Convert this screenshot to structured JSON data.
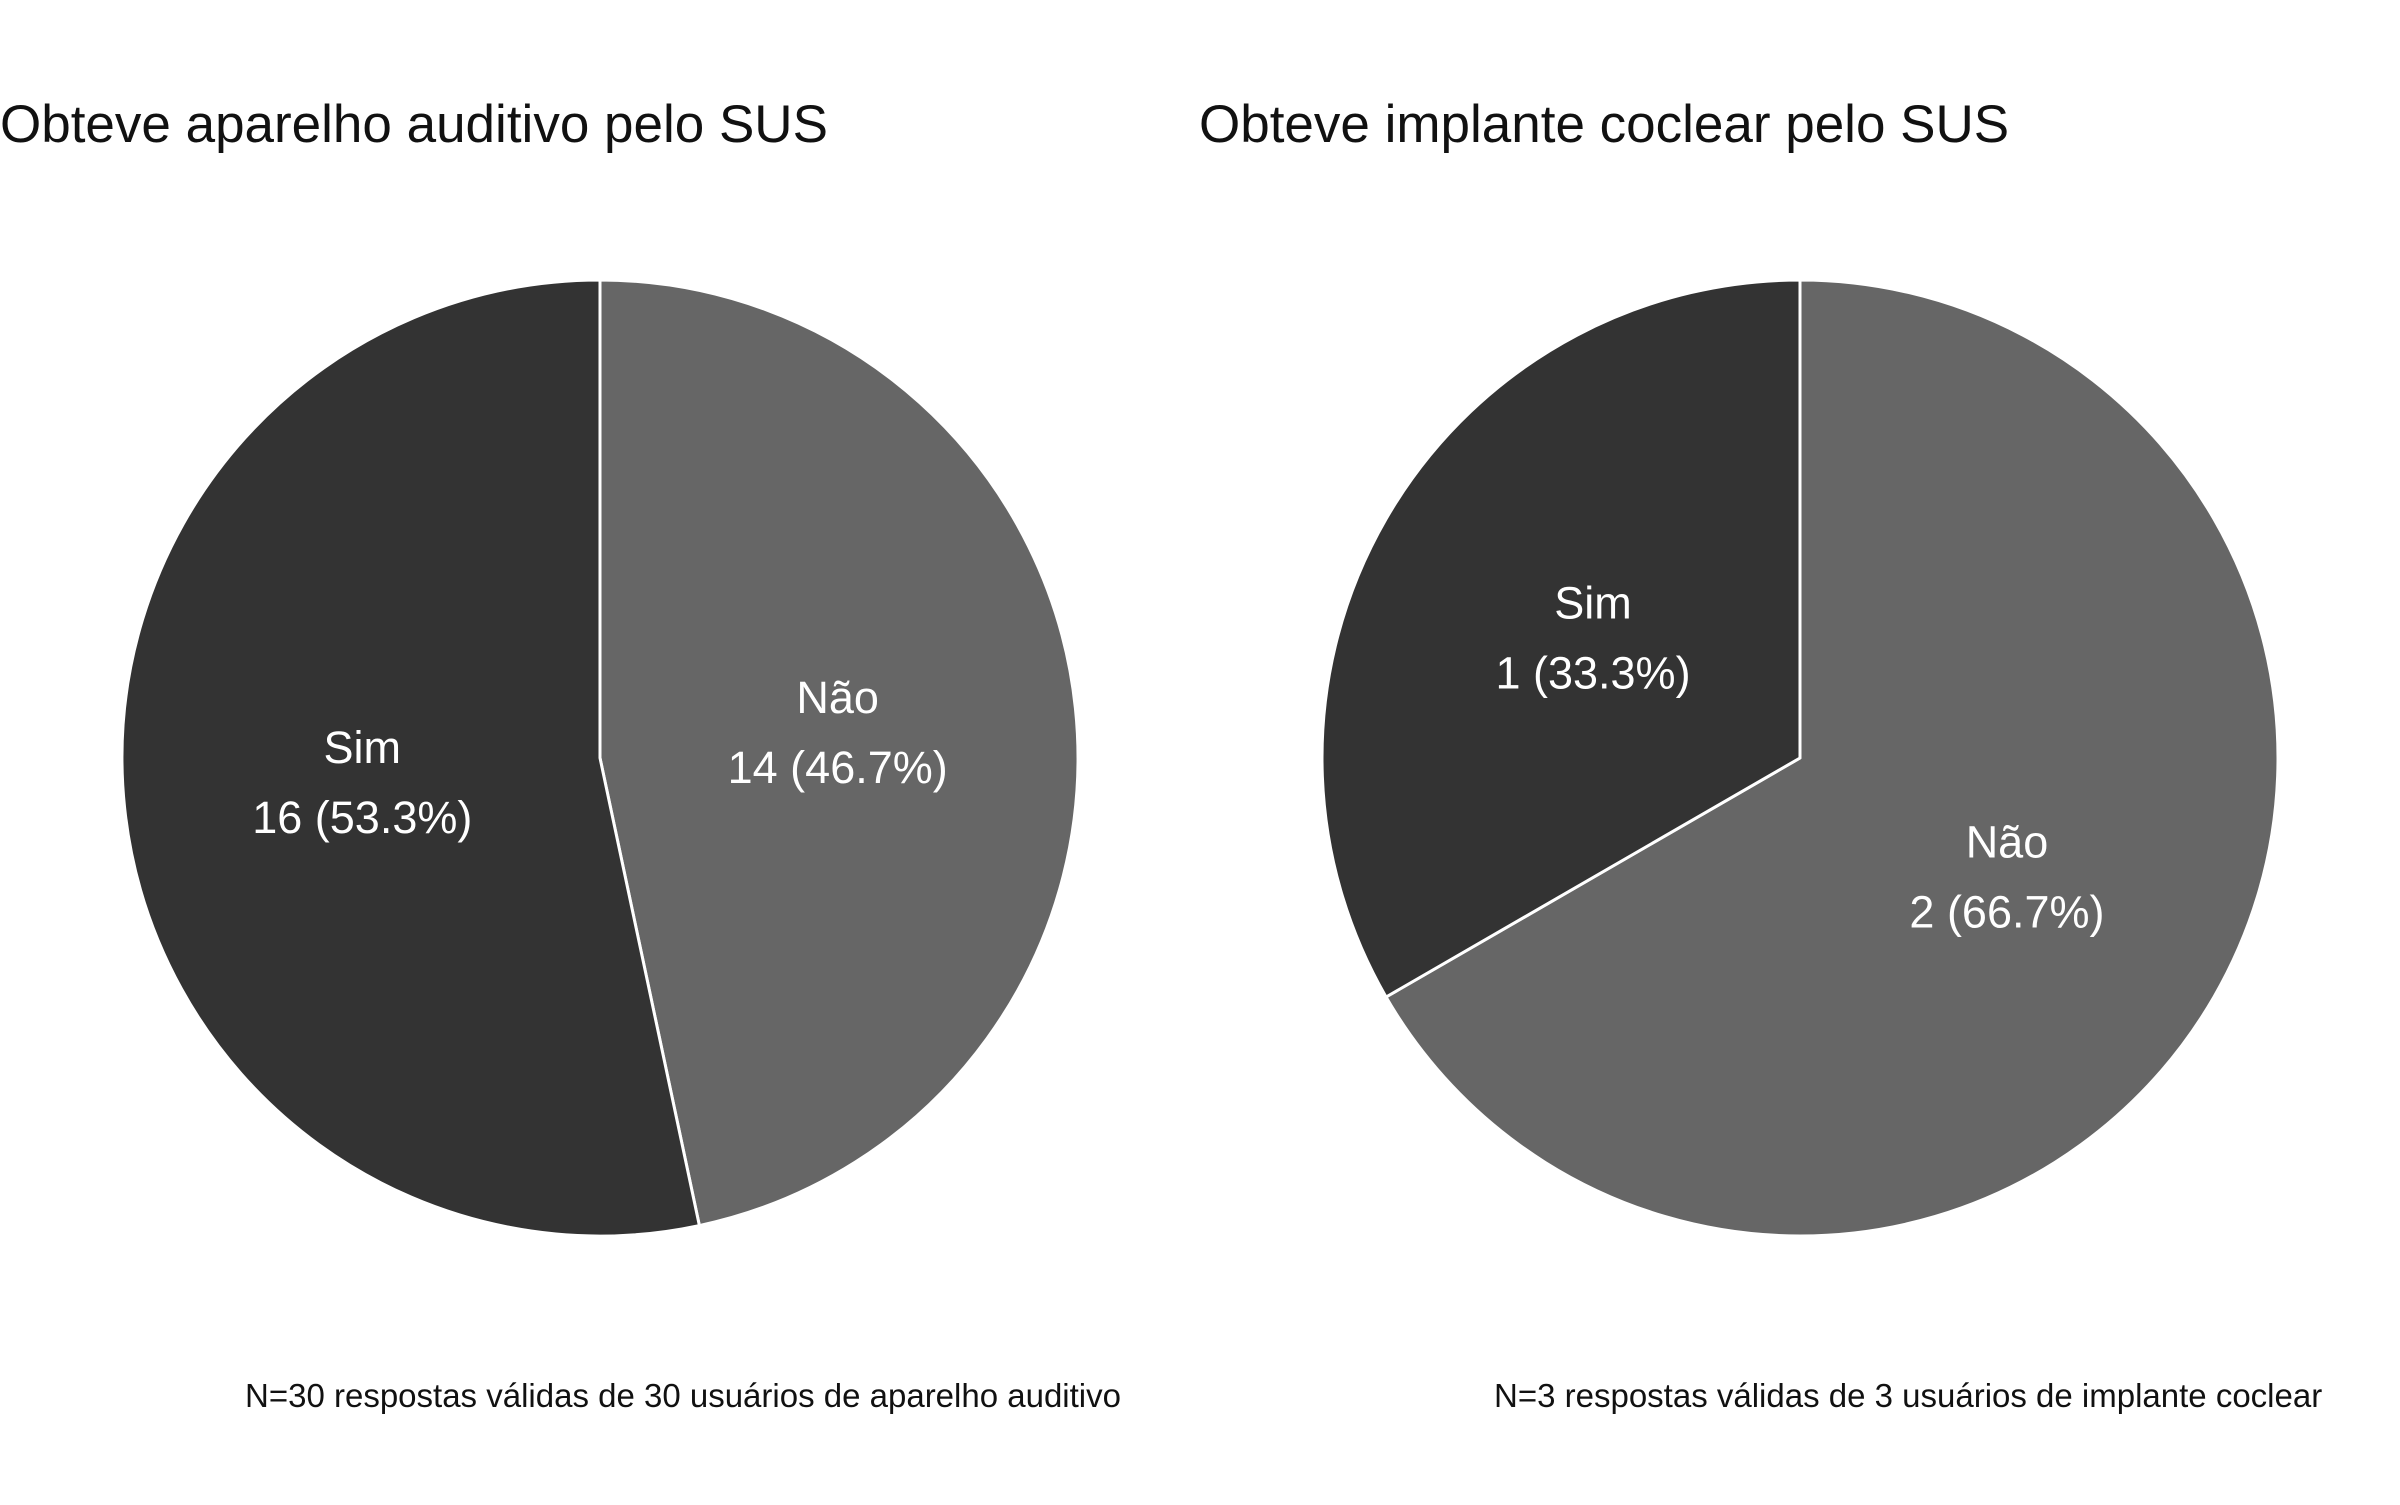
{
  "chart_data": [
    {
      "type": "pie",
      "title": "Obteve aparelho auditivo pelo SUS",
      "caption": "N=30 respostas válidas de 30 usuários de aparelho auditivo",
      "slices": [
        {
          "label": "Não",
          "value": 14,
          "text": "14 (46.7%)",
          "color": "#666666"
        },
        {
          "label": "Sim",
          "value": 16,
          "text": "16 (53.3%)",
          "color": "#333333"
        }
      ]
    },
    {
      "type": "pie",
      "title": "Obteve implante coclear pelo SUS",
      "caption": "N=3 respostas válidas de 3 usuários de implante coclear",
      "slices": [
        {
          "label": "Não",
          "value": 2,
          "text": "2 (66.7%)",
          "color": "#666666"
        },
        {
          "label": "Sim",
          "value": 1,
          "text": "1 (33.3%)",
          "color": "#333333"
        }
      ]
    }
  ]
}
